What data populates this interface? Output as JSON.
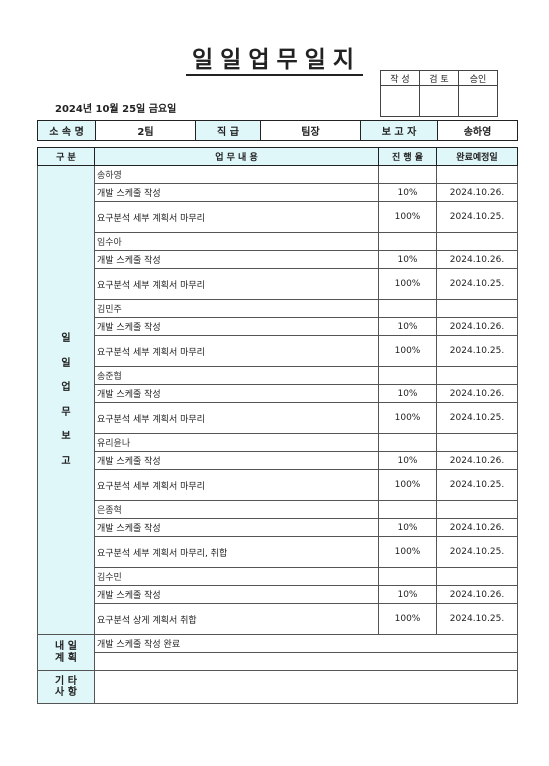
{
  "title": "일일업무일지",
  "approval": {
    "labels": [
      "작 성",
      "검 토",
      "승인"
    ]
  },
  "date": "2024년 10월 25일 금요일",
  "info": {
    "dept_label": "소 속 명",
    "dept_value": "2팀",
    "rank_label": "직 급",
    "rank_value": "팀장",
    "reporter_label": "보 고 자",
    "reporter_value": "송하영"
  },
  "table": {
    "headers": {
      "category": "구 분",
      "content": "업 무 내 용",
      "progress": "진 행 율",
      "due": "완료예정일"
    },
    "side_label": [
      "일",
      "일",
      "업",
      "무",
      "보",
      "고"
    ],
    "persons": [
      {
        "name": "송하영",
        "tasks": [
          {
            "content": "개발 스케줄 작성",
            "progress": "10%",
            "due": "2024.10.26."
          },
          {
            "content": "요구분석 세부 계획서 마무리",
            "progress": "100%",
            "due": "2024.10.25."
          }
        ]
      },
      {
        "name": "임수아",
        "tasks": [
          {
            "content": "개발 스케줄 작성",
            "progress": "10%",
            "due": "2024.10.26."
          },
          {
            "content": "요구분석 세부 계획서 마무리",
            "progress": "100%",
            "due": "2024.10.25."
          }
        ]
      },
      {
        "name": "김민주",
        "tasks": [
          {
            "content": "개발 스케줄 작성",
            "progress": "10%",
            "due": "2024.10.26."
          },
          {
            "content": "요구분석 세부 계획서 마무리",
            "progress": "100%",
            "due": "2024.10.25."
          }
        ]
      },
      {
        "name": "송준협",
        "tasks": [
          {
            "content": "개발 스케줄 작성",
            "progress": "10%",
            "due": "2024.10.26."
          },
          {
            "content": "요구분석 세부 계획서 마무리",
            "progress": "100%",
            "due": "2024.10.25."
          }
        ]
      },
      {
        "name": "유리윤나",
        "tasks": [
          {
            "content": "개발 스케줄 작성",
            "progress": "10%",
            "due": "2024.10.26."
          },
          {
            "content": "요구분석 세부 계획서 마무리",
            "progress": "100%",
            "due": "2024.10.25."
          }
        ]
      },
      {
        "name": "은종혁",
        "tasks": [
          {
            "content": "개발 스케줄 작성",
            "progress": "10%",
            "due": "2024.10.26."
          },
          {
            "content": "요구분석 세부 계획서 마무리, 취합",
            "progress": "100%",
            "due": "2024.10.25."
          }
        ]
      },
      {
        "name": "김수민",
        "tasks": [
          {
            "content": "개발 스케줄 작성",
            "progress": "10%",
            "due": "2024.10.26."
          },
          {
            "content": "요구분석 상게 계획서 취합",
            "progress": "100%",
            "due": "2024.10.25."
          }
        ]
      }
    ]
  },
  "tomorrow": {
    "label_line1": "내 일",
    "label_line2": "계 획",
    "content": "개발 스케줄 작성 완료"
  },
  "etc": {
    "label_line1": "기 타",
    "label_line2": "사 항",
    "content": ""
  }
}
